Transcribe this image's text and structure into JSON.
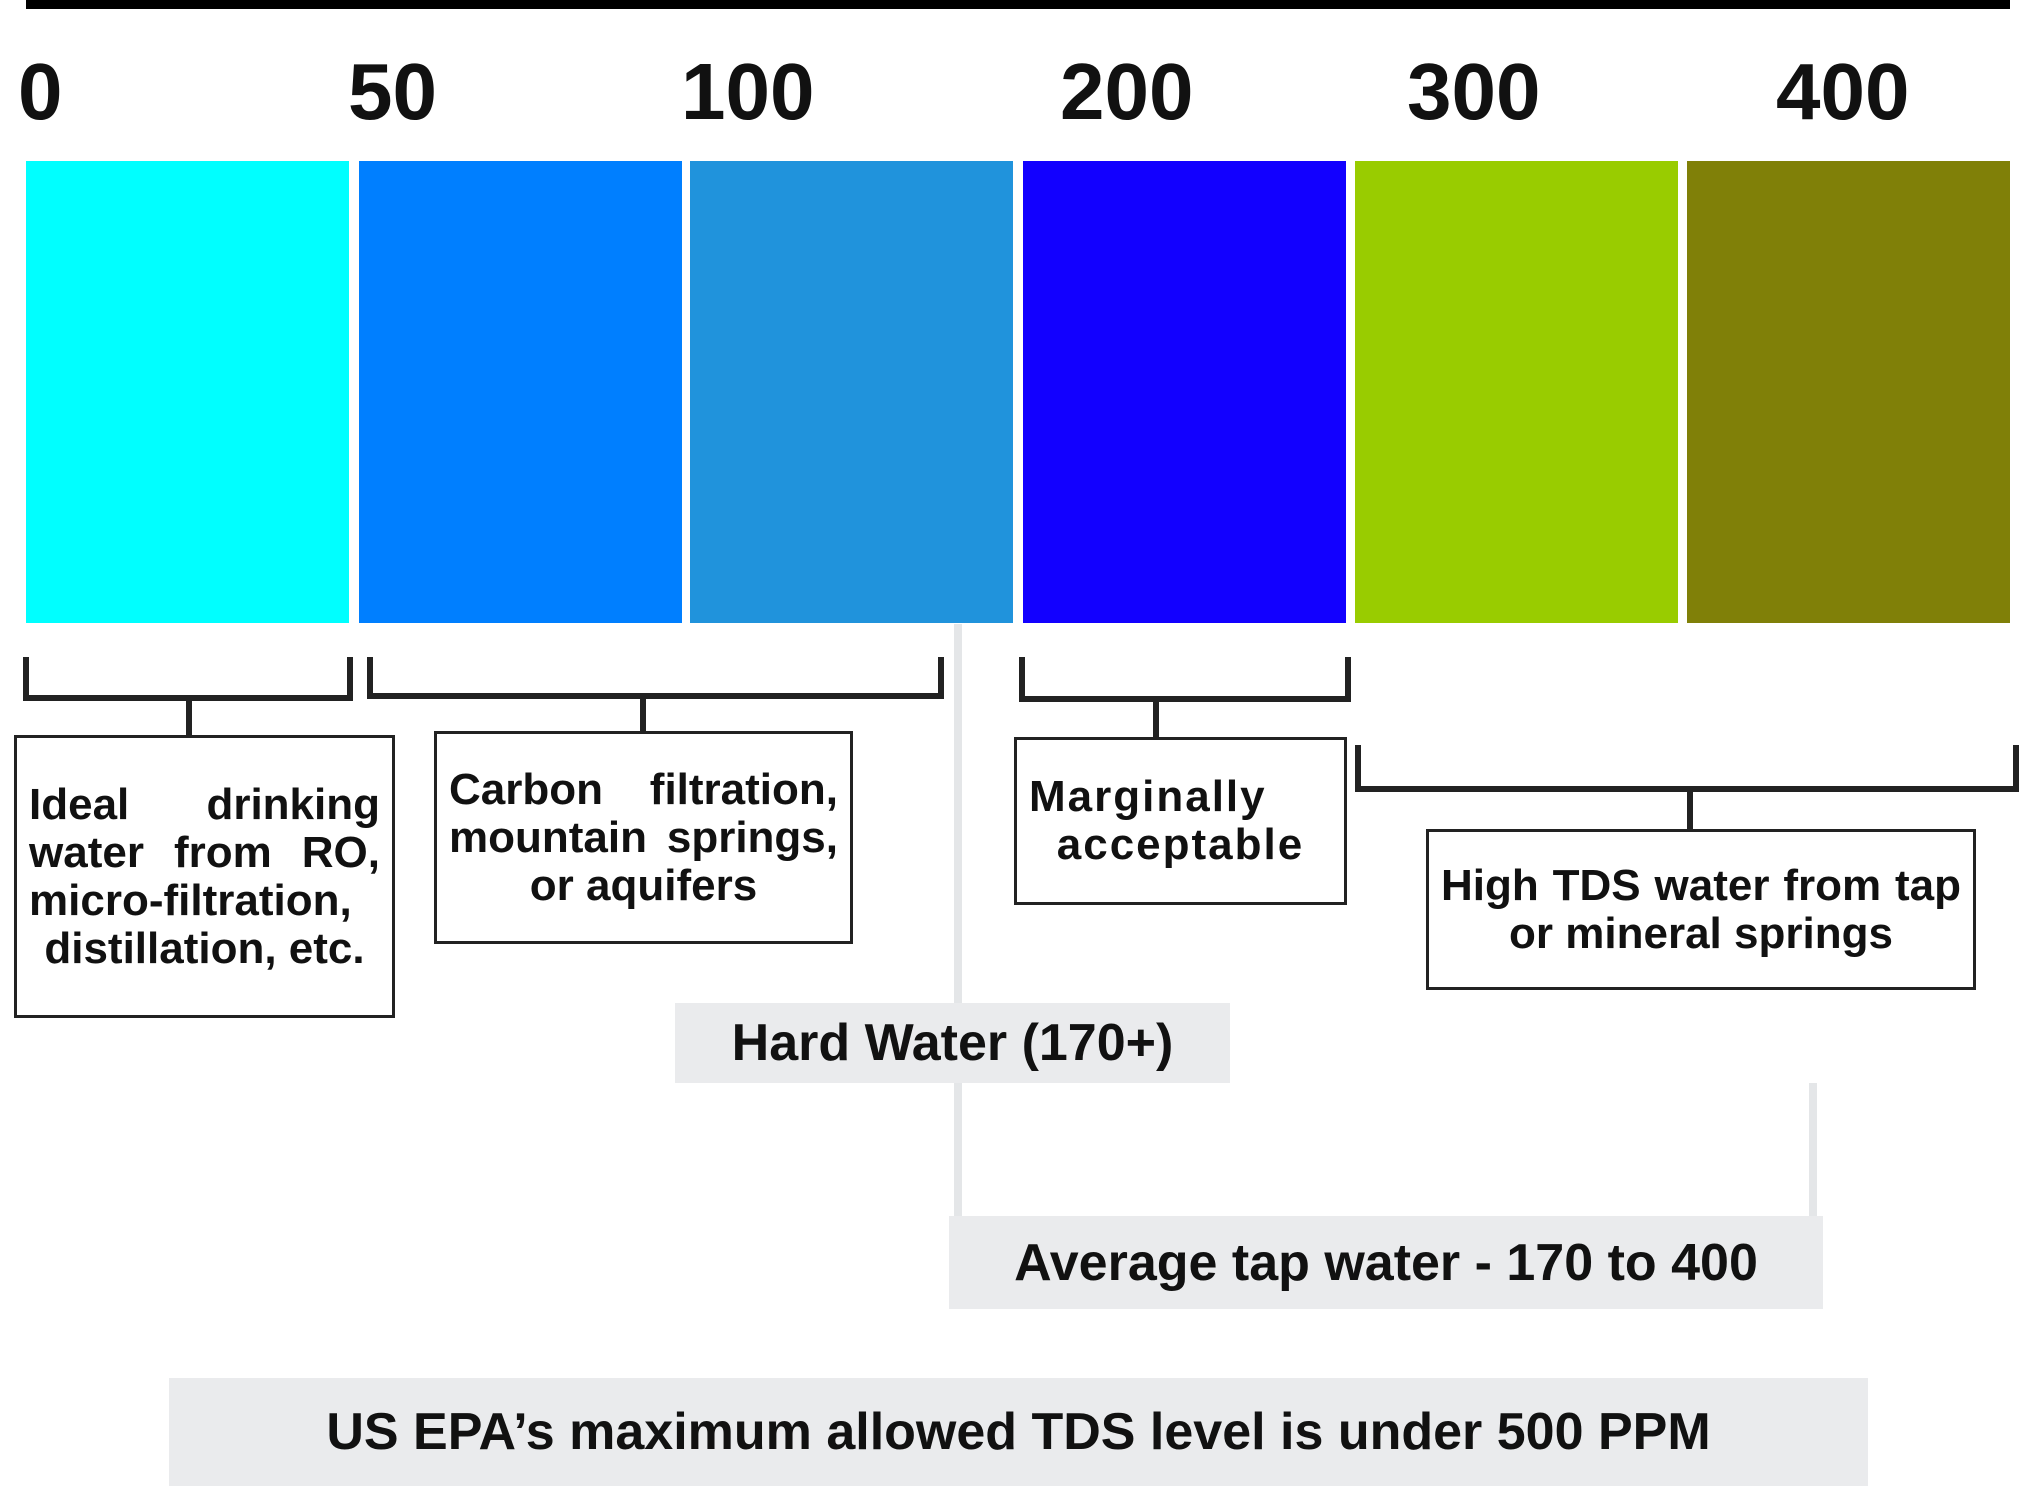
{
  "scale": {
    "labels": [
      "0",
      "50",
      "100",
      "200",
      "300",
      "400"
    ],
    "colors": [
      "#00ffff",
      "#007fff",
      "#2093dc",
      "#1200ff",
      "#99cc00",
      "#808008"
    ]
  },
  "groups": [
    {
      "text": "Ideal drinking water from RO, micro-filtration, distillation, etc."
    },
    {
      "text": "Carbon filtration, mountain springs, or aquifers"
    },
    {
      "text": "Marginally acceptable"
    },
    {
      "text": "High TDS water from tap or mineral springs"
    }
  ],
  "notes": {
    "hard_water": "Hard Water (170+)",
    "average_tap": "Average tap water - 170 to 400",
    "epa": "US EPA’s maximum allowed TDS level is under 500 PPM"
  }
}
